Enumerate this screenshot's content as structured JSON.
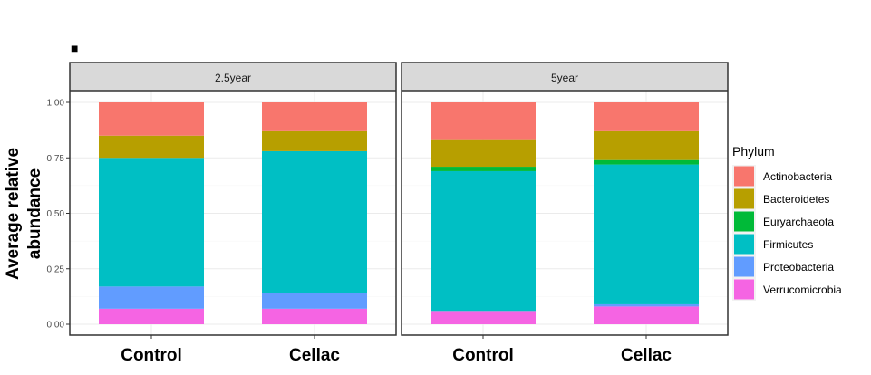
{
  "panel_tag": "■",
  "chart_data": {
    "type": "bar",
    "stacked": true,
    "facets": [
      "2.5year",
      "5year"
    ],
    "categories": [
      "Control",
      "Cellac"
    ],
    "ylabel_lines": [
      "Average relative",
      "abundance"
    ],
    "xlabel": "",
    "ylim": [
      0,
      1
    ],
    "yticks": [
      "0.00",
      "0.25",
      "0.50",
      "0.75",
      "1.00"
    ],
    "grid": true,
    "legend": {
      "title": "Phylum",
      "position": "right",
      "items": [
        {
          "name": "Actinobacteria",
          "color": "#F8766D"
        },
        {
          "name": "Bacteroidetes",
          "color": "#B79F00"
        },
        {
          "name": "Euryarchaeota",
          "color": "#00BA38"
        },
        {
          "name": "Firmicutes",
          "color": "#00BFC4"
        },
        {
          "name": "Proteobacteria",
          "color": "#619CFF"
        },
        {
          "name": "Verrucomicrobia",
          "color": "#F564E3"
        }
      ]
    },
    "stack_order_bottom_to_top": [
      "Verrucomicrobia",
      "Proteobacteria",
      "Firmicutes",
      "Euryarchaeota",
      "Bacteroidetes",
      "Actinobacteria"
    ],
    "series": [
      {
        "name": "Actinobacteria",
        "values": [
          [
            0.15,
            0.13
          ],
          [
            0.17,
            0.13
          ]
        ]
      },
      {
        "name": "Bacteroidetes",
        "values": [
          [
            0.1,
            0.09
          ],
          [
            0.12,
            0.13
          ]
        ]
      },
      {
        "name": "Euryarchaeota",
        "values": [
          [
            0.0,
            0.0
          ],
          [
            0.02,
            0.02
          ]
        ]
      },
      {
        "name": "Firmicutes",
        "values": [
          [
            0.58,
            0.64
          ],
          [
            0.63,
            0.63
          ]
        ]
      },
      {
        "name": "Proteobacteria",
        "values": [
          [
            0.1,
            0.07
          ],
          [
            0.0,
            0.01
          ]
        ]
      },
      {
        "name": "Verrucomicrobia",
        "values": [
          [
            0.07,
            0.07
          ],
          [
            0.06,
            0.08
          ]
        ]
      }
    ]
  }
}
